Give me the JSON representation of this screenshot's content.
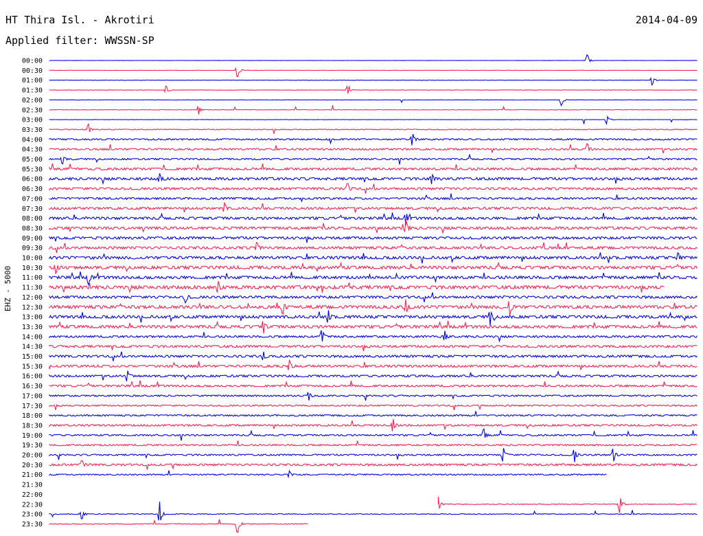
{
  "header": {
    "station": "HT Thira Isl. - Akrotiri",
    "date": "2014-04-09",
    "filter": "Applied filter: WWSSN-SP",
    "channel_label": "EHZ - 5000"
  },
  "colors": {
    "even_row": "#0000ee",
    "odd_row": "#ff1f4f",
    "text": "#000000"
  },
  "chart_data": {
    "type": "line",
    "title": "HT Thira Isl. - Akrotiri",
    "ylabel": "EHZ - 5000",
    "row_labels": [
      "00:00",
      "00:30",
      "01:00",
      "01:30",
      "02:00",
      "02:30",
      "03:00",
      "03:30",
      "04:00",
      "04:30",
      "05:00",
      "05:30",
      "06:00",
      "06:30",
      "07:00",
      "07:30",
      "08:00",
      "08:30",
      "09:00",
      "09:30",
      "10:00",
      "10:30",
      "11:00",
      "11:30",
      "12:00",
      "12:30",
      "13:00",
      "13:30",
      "14:00",
      "14:30",
      "15:00",
      "15:30",
      "16:00",
      "16:30",
      "17:00",
      "17:30",
      "18:00",
      "18:30",
      "19:00",
      "19:30",
      "20:00",
      "20:30",
      "21:00",
      "21:30",
      "22:00",
      "22:30",
      "23:00",
      "23:30"
    ],
    "row_noise": [
      0.05,
      0.1,
      0.1,
      0.15,
      0.1,
      0.15,
      0.1,
      0.3,
      0.6,
      0.7,
      0.6,
      0.9,
      1.0,
      0.9,
      0.8,
      0.9,
      1.0,
      1.0,
      1.0,
      1.0,
      1.1,
      1.2,
      1.1,
      1.3,
      1.0,
      1.2,
      1.1,
      1.1,
      0.8,
      0.9,
      0.9,
      0.9,
      0.8,
      0.8,
      0.6,
      0.6,
      0.6,
      0.7,
      0.6,
      0.6,
      0.6,
      0.8,
      0.5,
      0,
      0,
      0.3,
      0.3,
      0.3
    ],
    "row_coverage": [
      [
        0,
        1
      ],
      [
        0,
        1
      ],
      [
        0,
        1
      ],
      [
        0,
        1
      ],
      [
        0,
        1
      ],
      [
        0,
        1
      ],
      [
        0,
        1
      ],
      [
        0,
        1
      ],
      [
        0,
        1
      ],
      [
        0,
        1
      ],
      [
        0,
        1
      ],
      [
        0,
        1
      ],
      [
        0,
        1
      ],
      [
        0,
        1
      ],
      [
        0,
        1
      ],
      [
        0,
        1
      ],
      [
        0,
        1
      ],
      [
        0,
        1
      ],
      [
        0,
        1
      ],
      [
        0,
        1
      ],
      [
        0,
        1
      ],
      [
        0,
        1
      ],
      [
        0,
        1
      ],
      [
        0,
        0.95
      ],
      [
        0,
        1
      ],
      [
        0,
        1
      ],
      [
        0,
        1
      ],
      [
        0,
        1
      ],
      [
        0,
        1
      ],
      [
        0,
        1
      ],
      [
        0,
        1
      ],
      [
        0,
        1
      ],
      [
        0,
        1
      ],
      [
        0,
        1
      ],
      [
        0,
        1
      ],
      [
        0,
        1
      ],
      [
        0,
        1
      ],
      [
        0,
        1
      ],
      [
        0,
        1
      ],
      [
        0,
        1
      ],
      [
        0,
        1
      ],
      [
        0,
        1
      ],
      [
        0,
        0.86
      ],
      null,
      null,
      [
        0.6,
        1
      ],
      [
        0,
        1
      ],
      [
        0,
        0.4
      ]
    ],
    "events": [
      {
        "row": 0,
        "t": 0.83,
        "amp": 10
      },
      {
        "row": 1,
        "t": 0.29,
        "amp": 12
      },
      {
        "row": 2,
        "t": 0.93,
        "amp": 8
      },
      {
        "row": 3,
        "t": 0.18,
        "amp": 7
      },
      {
        "row": 3,
        "t": 0.46,
        "amp": 7
      },
      {
        "row": 4,
        "t": 0.79,
        "amp": 9
      },
      {
        "row": 5,
        "t": 0.23,
        "amp": 8
      },
      {
        "row": 6,
        "t": 0.86,
        "amp": 7
      },
      {
        "row": 7,
        "t": 0.06,
        "amp": 9
      },
      {
        "row": 8,
        "t": 0.56,
        "amp": 11
      },
      {
        "row": 9,
        "t": 0.83,
        "amp": 10
      },
      {
        "row": 10,
        "t": 0.02,
        "amp": 9
      },
      {
        "row": 12,
        "t": 0.17,
        "amp": 8
      },
      {
        "row": 12,
        "t": 0.59,
        "amp": 9
      },
      {
        "row": 13,
        "t": 0.46,
        "amp": 10
      },
      {
        "row": 15,
        "t": 0.27,
        "amp": 9
      },
      {
        "row": 16,
        "t": 0.55,
        "amp": 11
      },
      {
        "row": 17,
        "t": 0.55,
        "amp": 13
      },
      {
        "row": 19,
        "t": 0.32,
        "amp": 10
      },
      {
        "row": 20,
        "t": 0.97,
        "amp": 9
      },
      {
        "row": 21,
        "t": 0.01,
        "amp": 10
      },
      {
        "row": 22,
        "t": 0.06,
        "amp": 12
      },
      {
        "row": 23,
        "t": 0.26,
        "amp": 11
      },
      {
        "row": 24,
        "t": 0.21,
        "amp": 9
      },
      {
        "row": 25,
        "t": 0.36,
        "amp": 13
      },
      {
        "row": 25,
        "t": 0.55,
        "amp": 12
      },
      {
        "row": 25,
        "t": 0.71,
        "amp": 14
      },
      {
        "row": 26,
        "t": 0.43,
        "amp": 12
      },
      {
        "row": 26,
        "t": 0.68,
        "amp": 13
      },
      {
        "row": 27,
        "t": 0.33,
        "amp": 12
      },
      {
        "row": 28,
        "t": 0.42,
        "amp": 11
      },
      {
        "row": 28,
        "t": 0.61,
        "amp": 9
      },
      {
        "row": 30,
        "t": 0.33,
        "amp": 8
      },
      {
        "row": 31,
        "t": 0.37,
        "amp": 10
      },
      {
        "row": 32,
        "t": 0.12,
        "amp": 10
      },
      {
        "row": 34,
        "t": 0.4,
        "amp": 8
      },
      {
        "row": 37,
        "t": 0.53,
        "amp": 12
      },
      {
        "row": 38,
        "t": 0.67,
        "amp": 11
      },
      {
        "row": 40,
        "t": 0.7,
        "amp": 13
      },
      {
        "row": 40,
        "t": 0.81,
        "amp": 12
      },
      {
        "row": 40,
        "t": 0.87,
        "amp": 12
      },
      {
        "row": 41,
        "t": 0.05,
        "amp": 8
      },
      {
        "row": 42,
        "t": 0.37,
        "amp": 6
      },
      {
        "row": 45,
        "t": 0.6,
        "amp": 11
      },
      {
        "row": 45,
        "t": 0.88,
        "amp": 14
      },
      {
        "row": 46,
        "t": 0.05,
        "amp": 9
      },
      {
        "row": 46,
        "t": 0.17,
        "amp": 18
      },
      {
        "row": 47,
        "t": 0.29,
        "amp": 16
      }
    ],
    "xlim": [
      0,
      30
    ],
    "grid": false
  }
}
